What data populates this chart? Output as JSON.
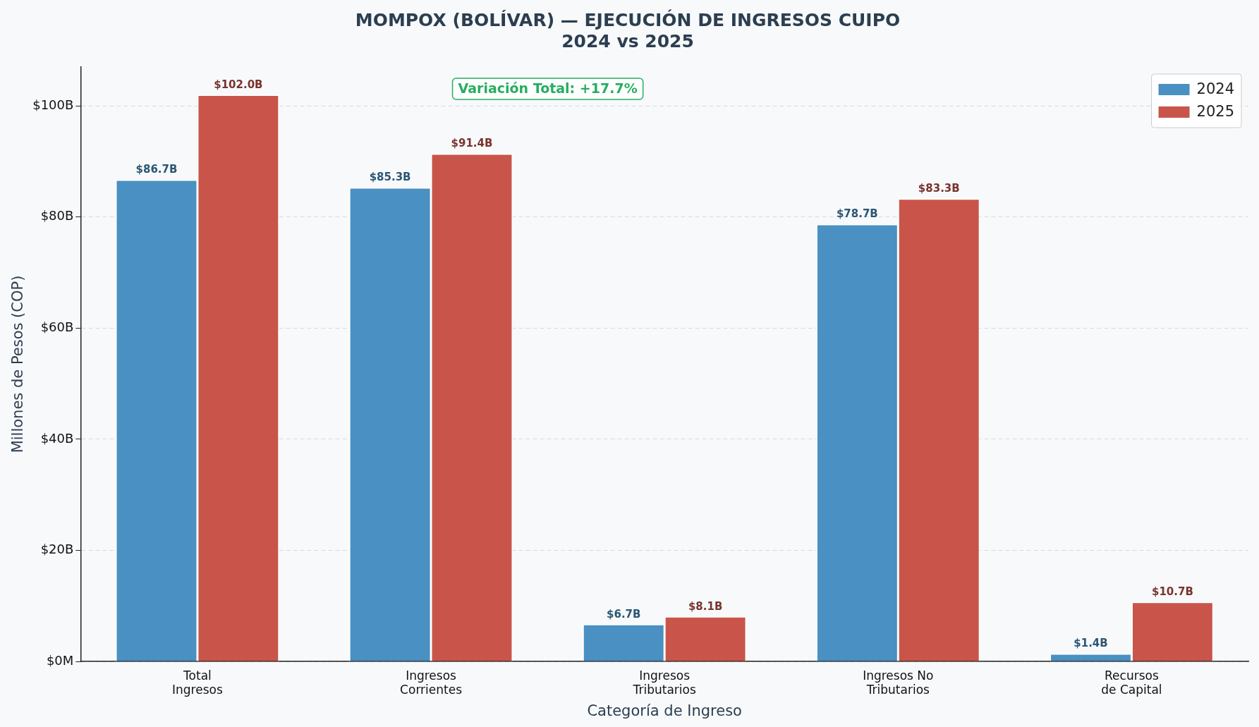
{
  "chart_data": {
    "type": "bar",
    "title": "MOMPOX (BOLÍVAR) — EJECUCIÓN DE INGRESOS CUIPO\n2024 vs 2025",
    "xlabel": "Categoría de Ingreso",
    "ylabel": "Millones de Pesos (COP)",
    "categories": [
      "Total\nIngresos",
      "Ingresos\nCorrientes",
      "Ingresos\nTributarios",
      "Ingresos No\nTributarios",
      "Recursos\nde Capital"
    ],
    "series": [
      {
        "name": "2024",
        "color": "#4a90c2",
        "values": [
          86.7,
          85.3,
          6.7,
          78.7,
          1.4
        ],
        "value_labels": [
          "$86.7B",
          "$85.3B",
          "$6.7B",
          "$78.7B",
          "$1.4B"
        ]
      },
      {
        "name": "2025",
        "color": "#c9554a",
        "values": [
          102.0,
          91.4,
          8.1,
          83.3,
          10.7
        ],
        "value_labels": [
          "$102.0B",
          "$91.4B",
          "$8.1B",
          "$83.3B",
          "$10.7B"
        ]
      }
    ],
    "ylim": [
      0,
      107
    ],
    "yticks": [
      {
        "value": 0,
        "label": "$0M"
      },
      {
        "value": 20,
        "label": "$20B"
      },
      {
        "value": 40,
        "label": "$40B"
      },
      {
        "value": 60,
        "label": "$60B"
      },
      {
        "value": 80,
        "label": "$80B"
      },
      {
        "value": 100,
        "label": "$100B"
      }
    ],
    "grid": "y",
    "legend": "top right",
    "annotations": [
      "Variación Total: +17.7%"
    ]
  }
}
